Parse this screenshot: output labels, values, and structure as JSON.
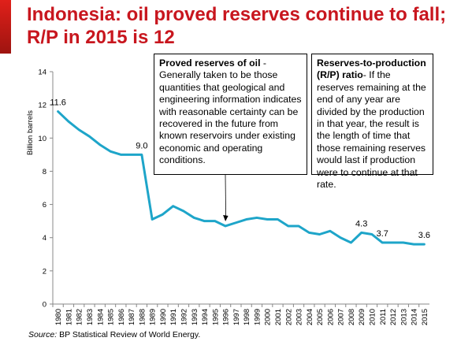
{
  "slide": {
    "title_line1": "Indonesia: oil proved reserves continue to fall;",
    "title_line2": "R/P in 2015 is 12",
    "source_label": "Source:",
    "source_text": " BP Statistical Review of World Energy."
  },
  "notes": {
    "proved_title": "Proved reserves of oil",
    "proved_text": " - Generally taken to be those quantities that geological and engineering information indicates with reasonable certainty can be recovered in the future from known reservoirs under existing economic and operating conditions.",
    "rp_title": "Reserves-to-production (R/P) ratio",
    "rp_text": "- If the reserves remaining at the end of any year are divided by the production in that year, the result is the length of time that those remaining reserves would last if production were to continue at that rate."
  },
  "chart_data": {
    "type": "line",
    "title": "Indonesia: oil proved reserves continue to fall; R/P in 2015 is 12",
    "ylabel": "Billion barrels",
    "xlabel": "",
    "ylim": [
      0,
      14
    ],
    "yticks": [
      0,
      2,
      4,
      6,
      8,
      10,
      12,
      14
    ],
    "grid": false,
    "line_color": "#1ea5c9",
    "categories": [
      "1980",
      "1981",
      "1982",
      "1983",
      "1984",
      "1985",
      "1986",
      "1987",
      "1988",
      "1989",
      "1990",
      "1991",
      "1992",
      "1993",
      "1994",
      "1995",
      "1996",
      "1997",
      "1998",
      "1999",
      "2000",
      "2001",
      "2002",
      "2003",
      "2004",
      "2005",
      "2006",
      "2007",
      "2008",
      "2009",
      "2010",
      "2011",
      "2012",
      "2013",
      "2014",
      "2015"
    ],
    "values": [
      11.6,
      11.0,
      10.5,
      10.1,
      9.6,
      9.2,
      9.0,
      9.0,
      9.0,
      5.1,
      5.4,
      5.9,
      5.6,
      5.2,
      5.0,
      5.0,
      4.7,
      4.9,
      5.1,
      5.2,
      5.1,
      5.1,
      4.7,
      4.7,
      4.3,
      4.2,
      4.4,
      4.0,
      3.7,
      4.3,
      4.2,
      3.7,
      3.7,
      3.7,
      3.6,
      3.6
    ],
    "data_labels": [
      {
        "year": "1980",
        "text": "11.6"
      },
      {
        "year": "1988",
        "text": "9.0"
      },
      {
        "year": "2009",
        "text": "4.3"
      },
      {
        "year": "2011",
        "text": "3.7"
      },
      {
        "year": "2015",
        "text": "3.6"
      }
    ],
    "annotation_arrow_year": "1996"
  }
}
